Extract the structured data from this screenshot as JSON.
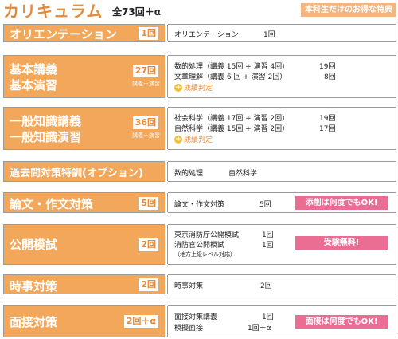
{
  "header": {
    "title": "カリキュラム",
    "subtitle": "全73回＋α",
    "special": "本科生だけのお得な特典"
  },
  "rows": [
    {
      "category": "オリエンテーション",
      "count": "1回",
      "items": [
        {
          "name": "オリエンテーション",
          "count": "1回"
        }
      ]
    },
    {
      "category_line1": "基本講義",
      "category_line2": "基本演習",
      "count": "27回",
      "sub": "講義＋演習",
      "items": [
        {
          "name": "数的処理（講義 15回 + 演習 4回）",
          "count": "19回"
        },
        {
          "name": "文章理解（講義 6 回 + 演習 2回）",
          "count": "8回"
        }
      ],
      "extra": "成績判定",
      "extra_icon": "plus-circle-icon"
    },
    {
      "category_line1": "一般知識講義",
      "category_line2": "一般知識演習",
      "count": "36回",
      "sub": "講義＋演習",
      "items": [
        {
          "name": "社会科学（講義 17回 + 演習 2回）",
          "count": "19回"
        },
        {
          "name": "自然科学（講義 15回 + 演習 2回）",
          "count": "17回"
        }
      ],
      "extra": "成績判定",
      "extra_icon": "plus-circle-icon"
    },
    {
      "category": "過去問対策特訓(オプション)",
      "items": [
        {
          "name": "数的処理"
        },
        {
          "name": "自然科学"
        }
      ]
    },
    {
      "category": "論文・作文対策",
      "count": "5回",
      "items": [
        {
          "name": "論文・作文対策",
          "count": "5回"
        }
      ],
      "badge": "添削は何度でもOK!"
    },
    {
      "category": "公開模試",
      "count": "2回",
      "items": [
        {
          "name": "東京消防庁公開模試",
          "count": "1回"
        },
        {
          "name": "消防官公開模試",
          "count": "1回"
        }
      ],
      "note": "（地方上級レベル対応）",
      "badge": "受験無料!"
    },
    {
      "category": "時事対策",
      "count": "2回",
      "items": [
        {
          "name": "時事対策",
          "count": "2回"
        }
      ]
    },
    {
      "category": "面接対策",
      "count": "2回＋α",
      "items": [
        {
          "name": "面接対策講義",
          "count": "1回"
        },
        {
          "name": "模擬面接",
          "count": "1回＋α"
        }
      ],
      "badge": "面接は何度でもOK!"
    }
  ]
}
